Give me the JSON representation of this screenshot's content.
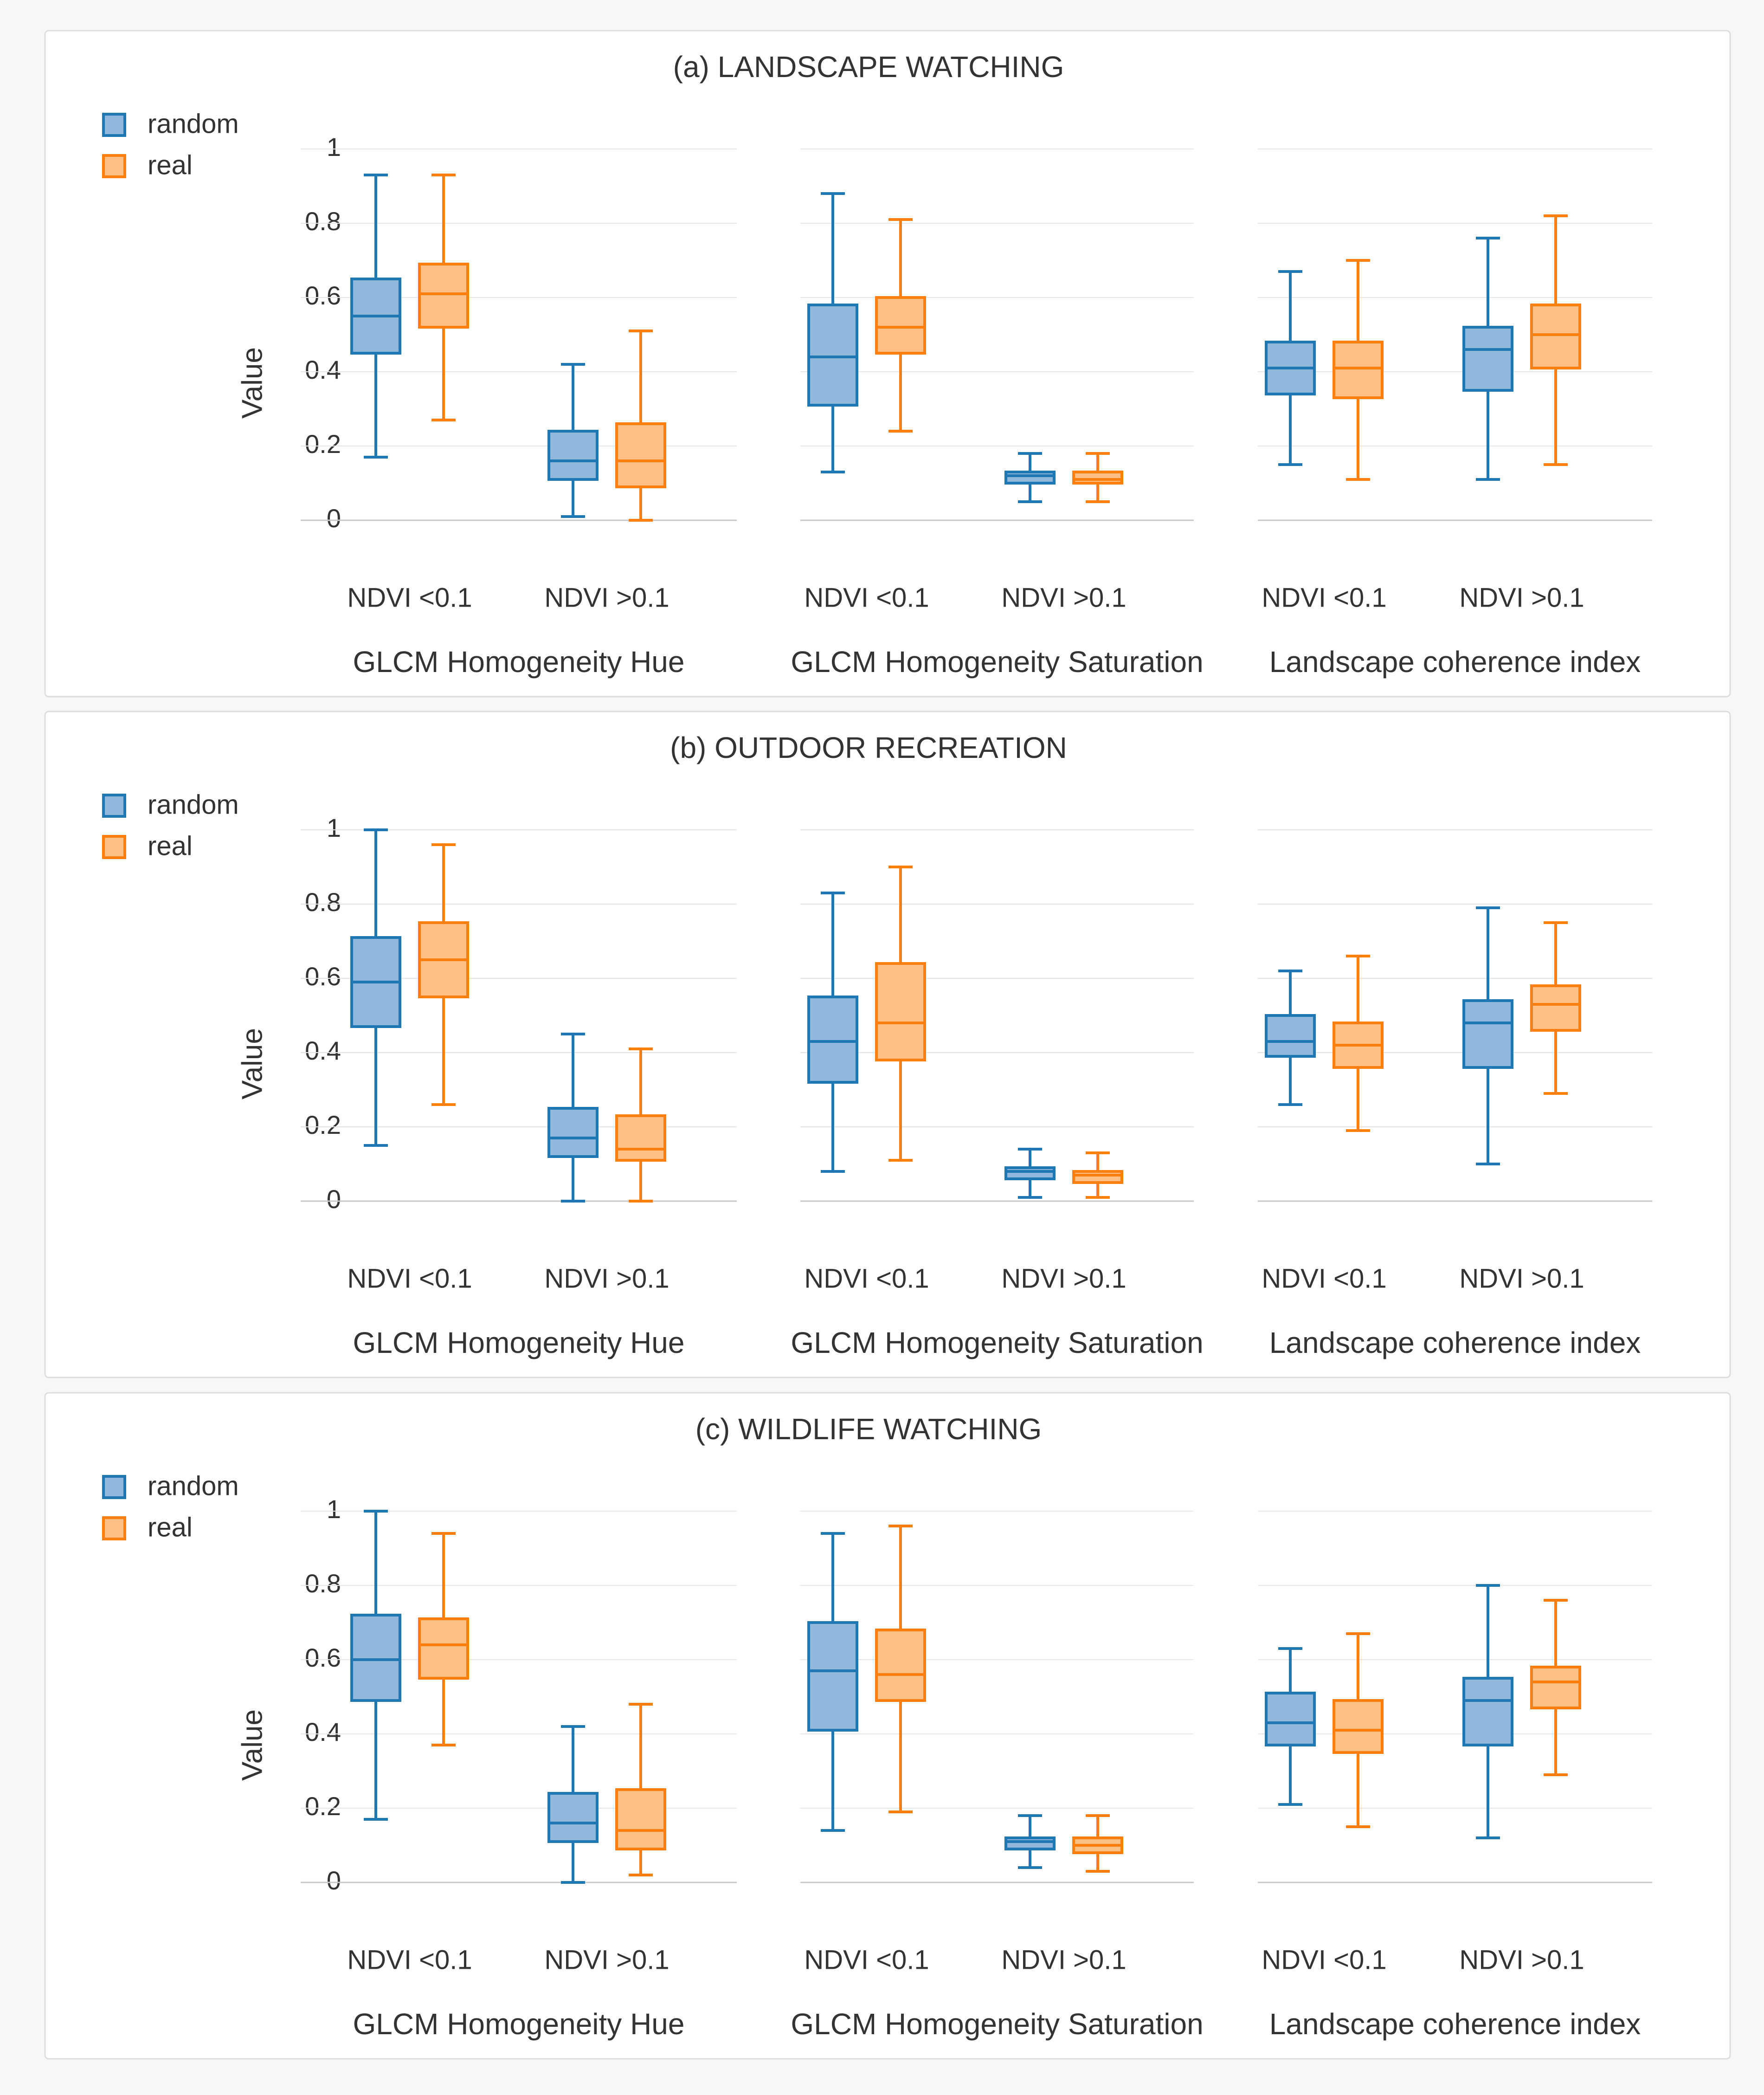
{
  "colors": {
    "random_stroke": "#1f77b4",
    "random_fill": "#8fb8dc",
    "real_stroke": "#ff7f0e",
    "real_fill": "#ffbf85",
    "grid": "#e6e6e6",
    "axis": "#c8c8c8",
    "text": "#333333",
    "panel_bg": "#ffffff",
    "panel_border": "#dddddd"
  },
  "y_axis": {
    "label": "Value",
    "ticks": [
      "0",
      "0.2",
      "0.4",
      "0.6",
      "0.8",
      "1"
    ]
  },
  "chart_data": [
    {
      "type": "box",
      "title": "(a) LANDSCAPE WATCHING",
      "ylabel": "Value",
      "ylim": [
        0,
        1
      ],
      "legend": [
        {
          "name": "random"
        },
        {
          "name": "real"
        }
      ],
      "groups": [
        {
          "label": "GLCM Homogeneity Hue",
          "categories": [
            {
              "label": "NDVI <0.1",
              "random": {
                "min": 0.17,
                "q1": 0.45,
                "median": 0.55,
                "q3": 0.65,
                "max": 0.93
              },
              "real": {
                "min": 0.27,
                "q1": 0.52,
                "median": 0.61,
                "q3": 0.69,
                "max": 0.93
              }
            },
            {
              "label": "NDVI >0.1",
              "random": {
                "min": 0.01,
                "q1": 0.11,
                "median": 0.16,
                "q3": 0.24,
                "max": 0.42
              },
              "real": {
                "min": 0.0,
                "q1": 0.09,
                "median": 0.16,
                "q3": 0.26,
                "max": 0.51
              }
            }
          ]
        },
        {
          "label": "GLCM Homogeneity Saturation",
          "categories": [
            {
              "label": "NDVI <0.1",
              "random": {
                "min": 0.13,
                "q1": 0.31,
                "median": 0.44,
                "q3": 0.58,
                "max": 0.88
              },
              "real": {
                "min": 0.24,
                "q1": 0.45,
                "median": 0.52,
                "q3": 0.6,
                "max": 0.81
              }
            },
            {
              "label": "NDVI >0.1",
              "random": {
                "min": 0.05,
                "q1": 0.1,
                "median": 0.12,
                "q3": 0.13,
                "max": 0.18
              },
              "real": {
                "min": 0.05,
                "q1": 0.1,
                "median": 0.11,
                "q3": 0.13,
                "max": 0.18
              }
            }
          ]
        },
        {
          "label": "Landscape coherence index",
          "categories": [
            {
              "label": "NDVI <0.1",
              "random": {
                "min": 0.15,
                "q1": 0.34,
                "median": 0.41,
                "q3": 0.48,
                "max": 0.67
              },
              "real": {
                "min": 0.11,
                "q1": 0.33,
                "median": 0.41,
                "q3": 0.48,
                "max": 0.7
              }
            },
            {
              "label": "NDVI >0.1",
              "random": {
                "min": 0.11,
                "q1": 0.35,
                "median": 0.46,
                "q3": 0.52,
                "max": 0.76
              },
              "real": {
                "min": 0.15,
                "q1": 0.41,
                "median": 0.5,
                "q3": 0.58,
                "max": 0.82
              }
            }
          ]
        }
      ]
    },
    {
      "type": "box",
      "title": "(b) OUTDOOR RECREATION",
      "ylabel": "Value",
      "ylim": [
        0,
        1
      ],
      "legend": [
        {
          "name": "random"
        },
        {
          "name": "real"
        }
      ],
      "groups": [
        {
          "label": "GLCM Homogeneity Hue",
          "categories": [
            {
              "label": "NDVI <0.1",
              "random": {
                "min": 0.15,
                "q1": 0.47,
                "median": 0.59,
                "q3": 0.71,
                "max": 1.0
              },
              "real": {
                "min": 0.26,
                "q1": 0.55,
                "median": 0.65,
                "q3": 0.75,
                "max": 0.96
              }
            },
            {
              "label": "NDVI >0.1",
              "random": {
                "min": 0.0,
                "q1": 0.12,
                "median": 0.17,
                "q3": 0.25,
                "max": 0.45
              },
              "real": {
                "min": 0.0,
                "q1": 0.11,
                "median": 0.14,
                "q3": 0.23,
                "max": 0.41
              }
            }
          ]
        },
        {
          "label": "GLCM Homogeneity Saturation",
          "categories": [
            {
              "label": "NDVI <0.1",
              "random": {
                "min": 0.08,
                "q1": 0.32,
                "median": 0.43,
                "q3": 0.55,
                "max": 0.83
              },
              "real": {
                "min": 0.11,
                "q1": 0.38,
                "median": 0.48,
                "q3": 0.64,
                "max": 0.9
              }
            },
            {
              "label": "NDVI >0.1",
              "random": {
                "min": 0.01,
                "q1": 0.06,
                "median": 0.08,
                "q3": 0.09,
                "max": 0.14
              },
              "real": {
                "min": 0.01,
                "q1": 0.05,
                "median": 0.07,
                "q3": 0.08,
                "max": 0.13
              }
            }
          ]
        },
        {
          "label": "Landscape coherence index",
          "categories": [
            {
              "label": "NDVI <0.1",
              "random": {
                "min": 0.26,
                "q1": 0.39,
                "median": 0.43,
                "q3": 0.5,
                "max": 0.62
              },
              "real": {
                "min": 0.19,
                "q1": 0.36,
                "median": 0.42,
                "q3": 0.48,
                "max": 0.66
              }
            },
            {
              "label": "NDVI >0.1",
              "random": {
                "min": 0.1,
                "q1": 0.36,
                "median": 0.48,
                "q3": 0.54,
                "max": 0.79
              },
              "real": {
                "min": 0.29,
                "q1": 0.46,
                "median": 0.53,
                "q3": 0.58,
                "max": 0.75
              }
            }
          ]
        }
      ]
    },
    {
      "type": "box",
      "title": "(c) WILDLIFE WATCHING",
      "ylabel": "Value",
      "ylim": [
        0,
        1
      ],
      "legend": [
        {
          "name": "random"
        },
        {
          "name": "real"
        }
      ],
      "groups": [
        {
          "label": "GLCM Homogeneity Hue",
          "categories": [
            {
              "label": "NDVI <0.1",
              "random": {
                "min": 0.17,
                "q1": 0.49,
                "median": 0.6,
                "q3": 0.72,
                "max": 1.0
              },
              "real": {
                "min": 0.37,
                "q1": 0.55,
                "median": 0.64,
                "q3": 0.71,
                "max": 0.94
              }
            },
            {
              "label": "NDVI >0.1",
              "random": {
                "min": 0.0,
                "q1": 0.11,
                "median": 0.16,
                "q3": 0.24,
                "max": 0.42
              },
              "real": {
                "min": 0.02,
                "q1": 0.09,
                "median": 0.14,
                "q3": 0.25,
                "max": 0.48
              }
            }
          ]
        },
        {
          "label": "GLCM Homogeneity Saturation",
          "categories": [
            {
              "label": "NDVI <0.1",
              "random": {
                "min": 0.14,
                "q1": 0.41,
                "median": 0.57,
                "q3": 0.7,
                "max": 0.94
              },
              "real": {
                "min": 0.19,
                "q1": 0.49,
                "median": 0.56,
                "q3": 0.68,
                "max": 0.96
              }
            },
            {
              "label": "NDVI >0.1",
              "random": {
                "min": 0.04,
                "q1": 0.09,
                "median": 0.11,
                "q3": 0.12,
                "max": 0.18
              },
              "real": {
                "min": 0.03,
                "q1": 0.08,
                "median": 0.1,
                "q3": 0.12,
                "max": 0.18
              }
            }
          ]
        },
        {
          "label": "Landscape coherence index",
          "categories": [
            {
              "label": "NDVI <0.1",
              "random": {
                "min": 0.21,
                "q1": 0.37,
                "median": 0.43,
                "q3": 0.51,
                "max": 0.63
              },
              "real": {
                "min": 0.15,
                "q1": 0.35,
                "median": 0.41,
                "q3": 0.49,
                "max": 0.67
              }
            },
            {
              "label": "NDVI >0.1",
              "random": {
                "min": 0.12,
                "q1": 0.37,
                "median": 0.49,
                "q3": 0.55,
                "max": 0.8
              },
              "real": {
                "min": 0.29,
                "q1": 0.47,
                "median": 0.54,
                "q3": 0.58,
                "max": 0.76
              }
            }
          ]
        }
      ]
    }
  ]
}
